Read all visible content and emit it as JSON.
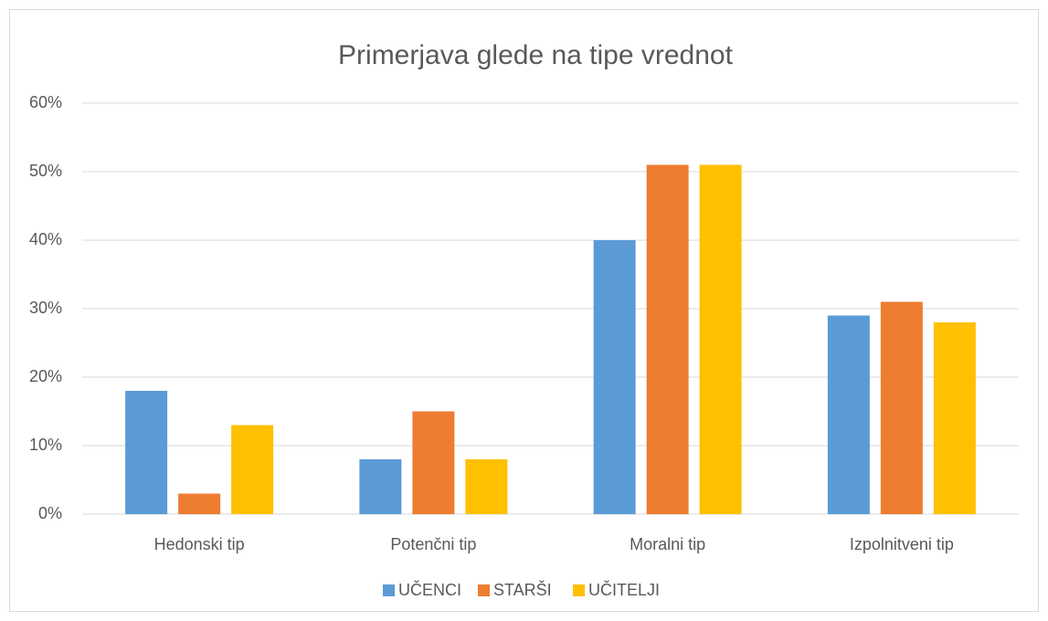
{
  "chart_data": {
    "type": "bar",
    "title": "Primerjava glede na tipe vrednot",
    "categories": [
      "Hedonski tip",
      "Potenčni tip",
      "Moralni tip",
      "Izpolnitveni tip"
    ],
    "series": [
      {
        "name": "UČENCI",
        "color": "#5b9bd5",
        "values": [
          18,
          8,
          40,
          29
        ]
      },
      {
        "name": "STARŠI",
        "color": "#ed7d31",
        "values": [
          3,
          15,
          51,
          31
        ]
      },
      {
        "name": "UČITELJI",
        "color": "#ffc000",
        "values": [
          13,
          8,
          51,
          28
        ]
      }
    ],
    "ylim": [
      0,
      60
    ],
    "yticks": [
      {
        "value": 0,
        "label": "0%"
      },
      {
        "value": 10,
        "label": "10%"
      },
      {
        "value": 20,
        "label": "20%"
      },
      {
        "value": 30,
        "label": "30%"
      },
      {
        "value": 40,
        "label": "40%"
      },
      {
        "value": 50,
        "label": "50%"
      },
      {
        "value": 60,
        "label": "60%"
      }
    ],
    "grid": true,
    "legend": "bottom"
  }
}
